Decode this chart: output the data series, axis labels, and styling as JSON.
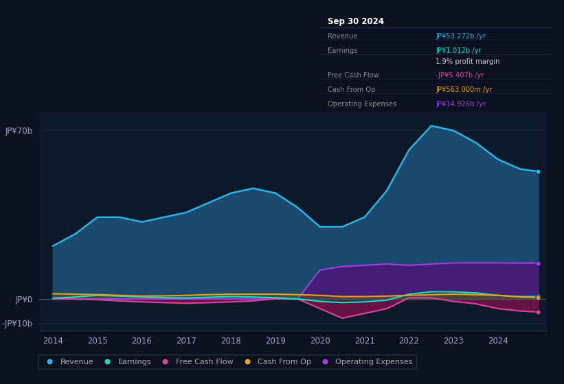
{
  "background_color": "#0b1120",
  "plot_bg": "#0d1829",
  "grid_color": "#1a2535",
  "years": [
    2014,
    2014.5,
    2015,
    2015.5,
    2016,
    2016.5,
    2017,
    2017.5,
    2018,
    2018.5,
    2019,
    2019.5,
    2020,
    2020.5,
    2021,
    2021.5,
    2022,
    2022.5,
    2023,
    2023.5,
    2024,
    2024.5,
    2024.9
  ],
  "revenue": [
    22,
    27,
    34,
    34,
    32,
    34,
    36,
    40,
    44,
    46,
    44,
    38,
    30,
    30,
    34,
    45,
    62,
    72,
    70,
    65,
    58,
    54,
    53
  ],
  "earnings": [
    0.3,
    0.8,
    1.5,
    1.2,
    0.8,
    0.5,
    0.4,
    0.7,
    1.0,
    0.8,
    0.5,
    0.0,
    -1.0,
    -1.5,
    -1.2,
    -0.5,
    2.0,
    3.0,
    3.0,
    2.5,
    1.5,
    1.0,
    1.0
  ],
  "free_cash_flow": [
    0.2,
    0.0,
    -0.3,
    -0.8,
    -1.2,
    -1.5,
    -1.8,
    -1.5,
    -1.2,
    -0.8,
    0.2,
    0.0,
    -4.0,
    -8.0,
    -6.0,
    -4.0,
    0.5,
    0.5,
    -1.0,
    -2.0,
    -4.0,
    -5.0,
    -5.4
  ],
  "cash_from_op": [
    2.2,
    2.0,
    1.8,
    1.5,
    1.2,
    1.3,
    1.5,
    1.8,
    2.0,
    2.0,
    2.0,
    1.8,
    1.5,
    1.0,
    1.0,
    1.2,
    1.5,
    1.8,
    2.0,
    1.8,
    1.5,
    0.8,
    0.563
  ],
  "operating_expenses": [
    0.0,
    0.0,
    0.0,
    0.0,
    0.0,
    0.0,
    0.0,
    0.0,
    0.0,
    0.0,
    0.0,
    0.0,
    12.0,
    13.5,
    14.0,
    14.5,
    14.0,
    14.5,
    15.0,
    15.0,
    15.0,
    14.9,
    14.926
  ],
  "ylim": [
    -13,
    78
  ],
  "yticks": [
    -10,
    0,
    70
  ],
  "ytick_labels": [
    "-JP¥10b",
    "JP¥0",
    "JP¥70b"
  ],
  "xlim": [
    2013.7,
    2025.1
  ],
  "xticks": [
    2014,
    2015,
    2016,
    2017,
    2018,
    2019,
    2020,
    2021,
    2022,
    2023,
    2024
  ],
  "colors": {
    "revenue": "#29b5e8",
    "revenue_fill": "#1a4a6e",
    "earnings": "#00e5c8",
    "free_cash_flow": "#e040a0",
    "cash_from_op": "#e8a020",
    "operating_expenses": "#9c40e8",
    "operating_expenses_fill": "#4a1878"
  },
  "info_box": {
    "title": "Sep 30 2024",
    "rows": [
      {
        "label": "Revenue",
        "value": "JP¥53.272b /yr",
        "value_color": "#29b5e8"
      },
      {
        "label": "Earnings",
        "value": "JP¥1.012b /yr",
        "value_color": "#00e5c8"
      },
      {
        "label": "",
        "value": "1.9% profit margin",
        "value_color": "#cccccc"
      },
      {
        "label": "Free Cash Flow",
        "value": "-JP¥5.407b /yr",
        "value_color": "#e040a0"
      },
      {
        "label": "Cash From Op",
        "value": "JP¥563.000m /yr",
        "value_color": "#e8a020"
      },
      {
        "label": "Operating Expenses",
        "value": "JP¥14.926b /yr",
        "value_color": "#9c40e8"
      }
    ]
  },
  "legend": [
    {
      "label": "Revenue",
      "color": "#29b5e8"
    },
    {
      "label": "Earnings",
      "color": "#00e5c8"
    },
    {
      "label": "Free Cash Flow",
      "color": "#e040a0"
    },
    {
      "label": "Cash From Op",
      "color": "#e8a020"
    },
    {
      "label": "Operating Expenses",
      "color": "#9c40e8"
    }
  ]
}
